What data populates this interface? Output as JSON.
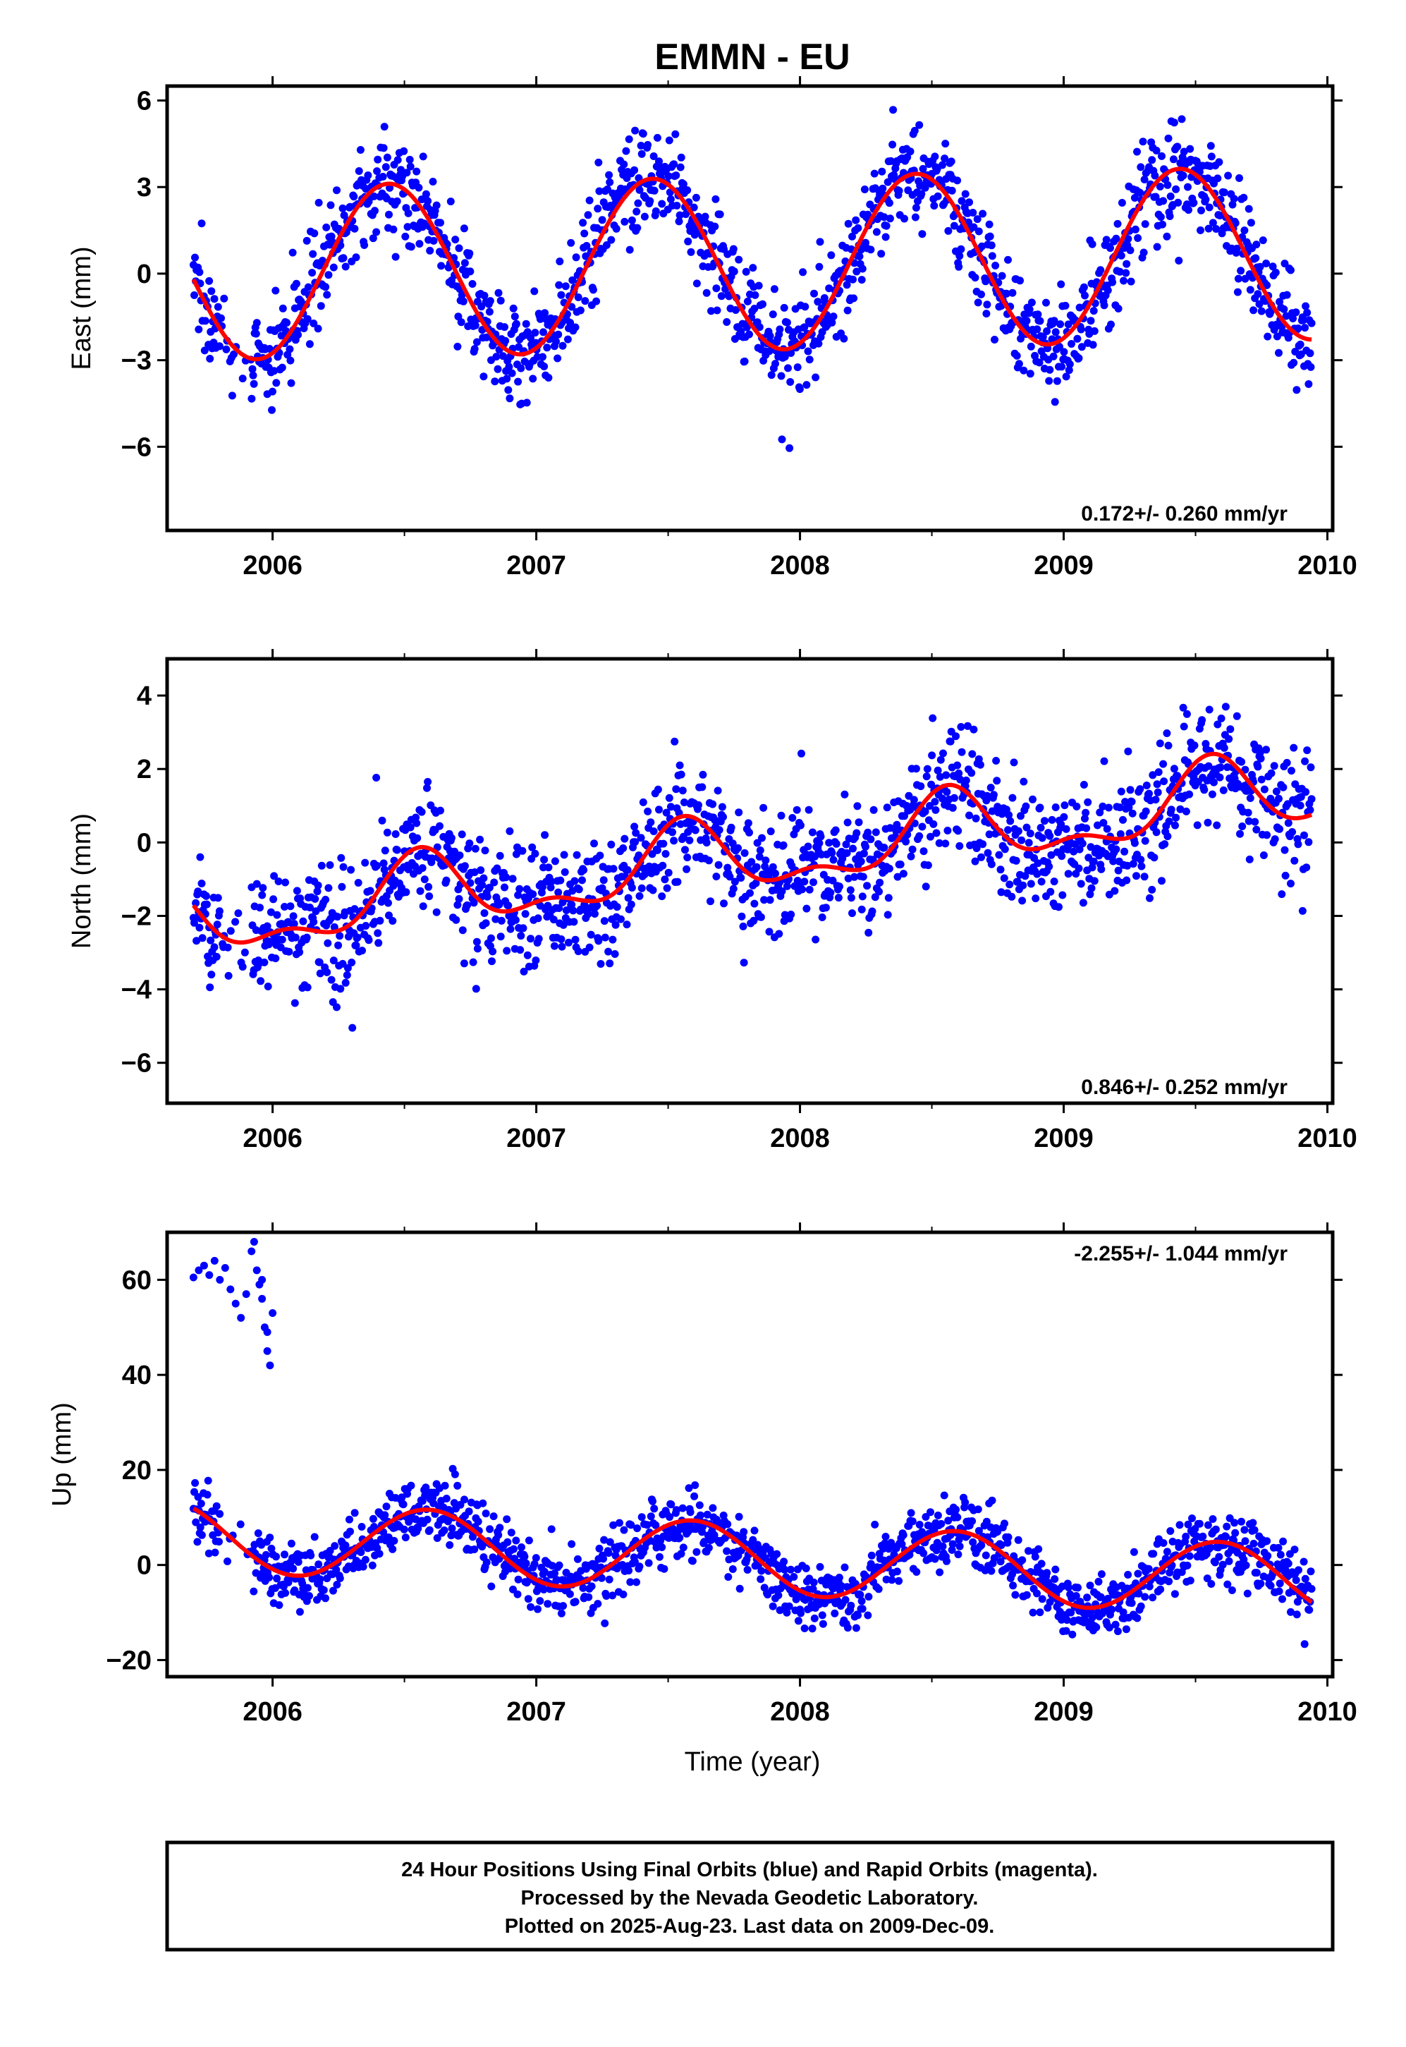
{
  "title": "EMMN - EU",
  "colors": {
    "points": "#0000ff",
    "model": "#ff0000",
    "frame": "#000000"
  },
  "chart_data": [
    {
      "type": "scatter",
      "name": "east",
      "ylabel": "East (mm)",
      "xlabel": "",
      "xlim": [
        2005.6,
        2010.02
      ],
      "ylim": [
        -8.9,
        6.5
      ],
      "xticks": [
        2006,
        2007,
        2008,
        2009,
        2010
      ],
      "yticks": [
        6,
        3,
        0,
        -3,
        -6
      ],
      "ytick_labels": [
        "6",
        "3",
        "0",
        "−3",
        "−6"
      ],
      "rate_label": "0.172+/- 0.260 mm/yr",
      "rate_position": "bottom-right",
      "data_start": 2005.7,
      "data_end": 2009.94,
      "model": {
        "offset": 0.35,
        "trend_mm_per_yr": 0.172,
        "annual_amplitude": 3.0,
        "annual_peak": 2006.44,
        "semiannual_amplitude": 0.0,
        "semiannual_peak": 0.0
      },
      "scatter_sd": 0.9,
      "point_count": 1500,
      "grid": false
    },
    {
      "type": "scatter",
      "name": "north",
      "ylabel": "North (mm)",
      "xlabel": "",
      "xlim": [
        2005.6,
        2010.02
      ],
      "ylim": [
        -7.1,
        5.0
      ],
      "xticks": [
        2006,
        2007,
        2008,
        2009,
        2010
      ],
      "yticks": [
        4,
        2,
        0,
        -2,
        -4,
        -6
      ],
      "ytick_labels": [
        "4",
        "2",
        "0",
        "−2",
        "−4",
        "−6"
      ],
      "rate_label": "0.846+/- 0.252 mm/yr",
      "rate_position": "bottom-right",
      "data_start": 2005.7,
      "data_end": 2009.94,
      "model": {
        "offset": -0.43,
        "trend_mm_per_yr": 0.846,
        "annual_amplitude": 0.9,
        "annual_peak": 2006.56,
        "semiannual_amplitude": 0.45,
        "semiannual_peak": 2006.06
      },
      "scatter_sd": 0.85,
      "point_count": 1500,
      "grid": false
    },
    {
      "type": "scatter",
      "name": "up",
      "ylabel": "Up (mm)",
      "xlabel": "Time (year)",
      "xlim": [
        2005.6,
        2010.02
      ],
      "ylim": [
        -23.5,
        70.0
      ],
      "xticks": [
        2006,
        2007,
        2008,
        2009,
        2010
      ],
      "yticks": [
        60,
        40,
        20,
        0,
        -20
      ],
      "ytick_labels": [
        "60",
        "40",
        "20",
        "0",
        "−20"
      ],
      "rate_label": "-2.255+/- 1.044 mm/yr",
      "rate_position": "top-right",
      "data_start": 2005.7,
      "data_end": 2009.94,
      "model": {
        "offset": 1.4,
        "trend_mm_per_yr": -2.255,
        "annual_amplitude": 7.5,
        "annual_peak": 2006.59,
        "semiannual_amplitude": 0.0,
        "semiannual_peak": 0.0
      },
      "scatter_sd": 3.4,
      "point_count": 1450,
      "outliers": [
        [
          2005.7,
          60.5
        ],
        [
          2005.72,
          62
        ],
        [
          2005.74,
          63
        ],
        [
          2005.76,
          61
        ],
        [
          2005.78,
          64
        ],
        [
          2005.8,
          60
        ],
        [
          2005.82,
          62.5
        ],
        [
          2005.84,
          58
        ],
        [
          2005.86,
          55
        ],
        [
          2005.88,
          52
        ],
        [
          2005.9,
          57
        ],
        [
          2005.92,
          66
        ],
        [
          2005.93,
          68
        ],
        [
          2005.94,
          62
        ],
        [
          2005.95,
          59
        ],
        [
          2005.96,
          56
        ],
        [
          2005.97,
          50
        ],
        [
          2005.98,
          45
        ],
        [
          2005.99,
          42
        ],
        [
          2006.0,
          53
        ],
        [
          2005.98,
          49
        ],
        [
          2005.96,
          60
        ]
      ],
      "grid": false
    }
  ],
  "footer": {
    "line1": "24 Hour Positions Using Final Orbits (blue) and Rapid Orbits (magenta).",
    "line2": "Processed by the Nevada Geodetic Laboratory.",
    "line3": "Plotted on 2025-Aug-23. Last data on 2009-Dec-09."
  }
}
